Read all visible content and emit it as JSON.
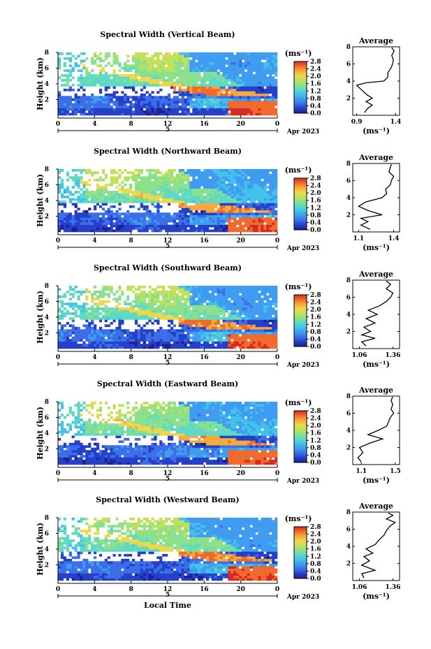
{
  "colors": {
    "colormap": [
      "#1f1f8c",
      "#2440c8",
      "#3b6ee8",
      "#3f9cf0",
      "#41c2ea",
      "#5fd9c4",
      "#8be08c",
      "#c2e05a",
      "#ecd84a",
      "#f6a93c",
      "#f06a2c",
      "#d42a22"
    ],
    "background": "#ffffff"
  },
  "chart_data": [
    {
      "type": "heatmap",
      "title": "Spectral Width (Vertical Beam)",
      "ylabel": "Height (km)",
      "ylim": [
        0,
        8
      ],
      "yticks": [
        "2",
        "4",
        "6",
        "8"
      ],
      "xticks": [
        "0",
        "4",
        "8",
        "12",
        "16",
        "20",
        "0"
      ],
      "date_axis": {
        "tick": "5",
        "label": "Apr 2023"
      },
      "colorbar": {
        "unit": "(ms⁻¹)",
        "ticks": [
          "0.0",
          "0.4",
          "0.8",
          "1.2",
          "1.6",
          "2.0",
          "2.4",
          "2.8"
        ],
        "range": [
          0,
          2.8
        ]
      },
      "profile": {
        "title": "Average",
        "xlabel": "(ms⁻¹)",
        "xticks": [
          "0.9",
          "1.4"
        ],
        "xlim": [
          0.85,
          1.45
        ],
        "ylim": [
          0,
          8
        ],
        "yticks": [
          "2",
          "4",
          "6",
          "8"
        ],
        "points": [
          [
            1.0,
            0.3
          ],
          [
            1.04,
            0.8
          ],
          [
            1.1,
            1.2
          ],
          [
            1.02,
            1.6
          ],
          [
            1.1,
            2.0
          ],
          [
            1.03,
            2.4
          ],
          [
            0.96,
            3.0
          ],
          [
            0.9,
            3.5
          ],
          [
            1.02,
            3.8
          ],
          [
            1.25,
            4.0
          ],
          [
            1.3,
            4.5
          ],
          [
            1.3,
            5.0
          ],
          [
            1.34,
            5.5
          ],
          [
            1.36,
            6.0
          ],
          [
            1.37,
            6.5
          ],
          [
            1.35,
            7.0
          ],
          [
            1.38,
            7.5
          ],
          [
            1.35,
            7.9
          ]
        ]
      }
    },
    {
      "type": "heatmap",
      "title": "Spectral Width (Northward Beam)",
      "ylabel": "Height (km)",
      "ylim": [
        0,
        8
      ],
      "yticks": [
        "2",
        "4",
        "6",
        "8"
      ],
      "xticks": [
        "0",
        "4",
        "8",
        "12",
        "16",
        "20",
        "0"
      ],
      "date_axis": {
        "tick": "5",
        "label": "Apr 2023"
      },
      "colorbar": {
        "unit": "(ms⁻¹)",
        "ticks": [
          "0.0",
          "0.4",
          "0.8",
          "1.2",
          "1.6",
          "2.0",
          "2.4",
          "2.8"
        ],
        "range": [
          0,
          2.8
        ]
      },
      "profile": {
        "title": "Average",
        "xlabel": "(ms⁻¹)",
        "xticks": [
          "1.1",
          "1.4"
        ],
        "xlim": [
          1.05,
          1.45
        ],
        "ylim": [
          0,
          8
        ],
        "yticks": [
          "2",
          "4",
          "6",
          "8"
        ],
        "points": [
          [
            1.2,
            0.3
          ],
          [
            1.12,
            0.8
          ],
          [
            1.18,
            1.2
          ],
          [
            1.12,
            1.6
          ],
          [
            1.3,
            2.0
          ],
          [
            1.18,
            2.5
          ],
          [
            1.1,
            3.0
          ],
          [
            1.16,
            3.5
          ],
          [
            1.3,
            4.0
          ],
          [
            1.34,
            4.5
          ],
          [
            1.33,
            5.0
          ],
          [
            1.37,
            5.5
          ],
          [
            1.38,
            6.0
          ],
          [
            1.4,
            6.5
          ],
          [
            1.36,
            7.0
          ],
          [
            1.37,
            7.5
          ],
          [
            1.38,
            7.9
          ]
        ]
      }
    },
    {
      "type": "heatmap",
      "title": "Spectral Width (Southward Beam)",
      "ylabel": "Height (km)",
      "ylim": [
        0,
        8
      ],
      "yticks": [
        "2",
        "4",
        "6",
        "8"
      ],
      "xticks": [
        "0",
        "4",
        "8",
        "12",
        "16",
        "20",
        "0"
      ],
      "date_axis": {
        "tick": "5",
        "label": "Apr 2023"
      },
      "colorbar": {
        "unit": "(ms⁻¹)",
        "ticks": [
          "0.0",
          "0.4",
          "0.8",
          "1.2",
          "1.6",
          "2.0",
          "2.4",
          "2.8"
        ],
        "range": [
          0,
          2.8
        ]
      },
      "profile": {
        "title": "Average",
        "xlabel": "(ms⁻¹)",
        "xticks": [
          "1.06",
          "1.36"
        ],
        "xlim": [
          1.0,
          1.42
        ],
        "ylim": [
          0,
          8
        ],
        "yticks": [
          "2",
          "4",
          "6",
          "8"
        ],
        "points": [
          [
            1.12,
            0.3
          ],
          [
            1.08,
            0.8
          ],
          [
            1.2,
            1.2
          ],
          [
            1.08,
            1.6
          ],
          [
            1.16,
            2.0
          ],
          [
            1.1,
            2.5
          ],
          [
            1.2,
            3.0
          ],
          [
            1.12,
            3.5
          ],
          [
            1.22,
            4.0
          ],
          [
            1.14,
            4.5
          ],
          [
            1.24,
            5.0
          ],
          [
            1.3,
            5.5
          ],
          [
            1.34,
            6.0
          ],
          [
            1.36,
            6.5
          ],
          [
            1.3,
            7.0
          ],
          [
            1.34,
            7.5
          ],
          [
            1.3,
            7.9
          ]
        ]
      }
    },
    {
      "type": "heatmap",
      "title": "Spectral Width (Eastward Beam)",
      "ylabel": "Height (km)",
      "ylim": [
        0,
        8
      ],
      "yticks": [
        "2",
        "4",
        "6",
        "8"
      ],
      "xticks": [
        "0",
        "4",
        "8",
        "12",
        "16",
        "20",
        "0"
      ],
      "date_axis": {
        "tick": "5",
        "label": "Apr 2023"
      },
      "colorbar": {
        "unit": "(ms⁻¹)",
        "ticks": [
          "0.0",
          "0.4",
          "0.8",
          "1.2",
          "1.6",
          "2.0",
          "2.4",
          "2.8"
        ],
        "range": [
          0,
          2.8
        ]
      },
      "profile": {
        "title": "Average",
        "xlabel": "(ms⁻¹)",
        "xticks": [
          "1.1",
          "1.5"
        ],
        "xlim": [
          1.0,
          1.55
        ],
        "ylim": [
          0,
          8
        ],
        "yticks": [
          "2",
          "4",
          "6",
          "8"
        ],
        "points": [
          [
            1.1,
            0.3
          ],
          [
            1.06,
            0.8
          ],
          [
            1.12,
            1.4
          ],
          [
            1.08,
            2.0
          ],
          [
            1.2,
            2.5
          ],
          [
            1.35,
            3.0
          ],
          [
            1.18,
            3.5
          ],
          [
            1.3,
            4.0
          ],
          [
            1.4,
            4.5
          ],
          [
            1.42,
            5.0
          ],
          [
            1.44,
            5.5
          ],
          [
            1.48,
            6.0
          ],
          [
            1.45,
            6.5
          ],
          [
            1.47,
            7.0
          ],
          [
            1.45,
            7.5
          ],
          [
            1.47,
            7.9
          ]
        ]
      }
    },
    {
      "type": "heatmap",
      "title": "Spectral Width (Westward Beam)",
      "ylabel": "Height (km)",
      "ylim": [
        0,
        8
      ],
      "yticks": [
        "2",
        "4",
        "6",
        "8"
      ],
      "xticks": [
        "0",
        "4",
        "8",
        "12",
        "16",
        "20",
        "0"
      ],
      "date_axis": {
        "tick": "5",
        "label": "Apr 2023"
      },
      "xlabel": "Local Time",
      "colorbar": {
        "unit": "(ms⁻¹)",
        "ticks": [
          "0.0",
          "0.4",
          "0.8",
          "1.2",
          "1.6",
          "2.0",
          "2.4",
          "2.8"
        ],
        "range": [
          0,
          2.8
        ]
      },
      "profile": {
        "title": "Average",
        "xlabel": "(ms⁻¹)",
        "xticks": [
          "1.06",
          "1.36"
        ],
        "xlim": [
          1.0,
          1.42
        ],
        "ylim": [
          0,
          8
        ],
        "yticks": [
          "2",
          "4",
          "6",
          "8"
        ],
        "points": [
          [
            1.1,
            0.3
          ],
          [
            1.08,
            0.8
          ],
          [
            1.2,
            1.2
          ],
          [
            1.08,
            1.8
          ],
          [
            1.15,
            2.3
          ],
          [
            1.1,
            2.8
          ],
          [
            1.18,
            3.2
          ],
          [
            1.12,
            3.7
          ],
          [
            1.2,
            4.2
          ],
          [
            1.24,
            4.8
          ],
          [
            1.28,
            5.3
          ],
          [
            1.3,
            5.8
          ],
          [
            1.33,
            6.3
          ],
          [
            1.38,
            6.8
          ],
          [
            1.3,
            7.2
          ],
          [
            1.36,
            7.6
          ],
          [
            1.32,
            7.9
          ]
        ]
      }
    }
  ]
}
